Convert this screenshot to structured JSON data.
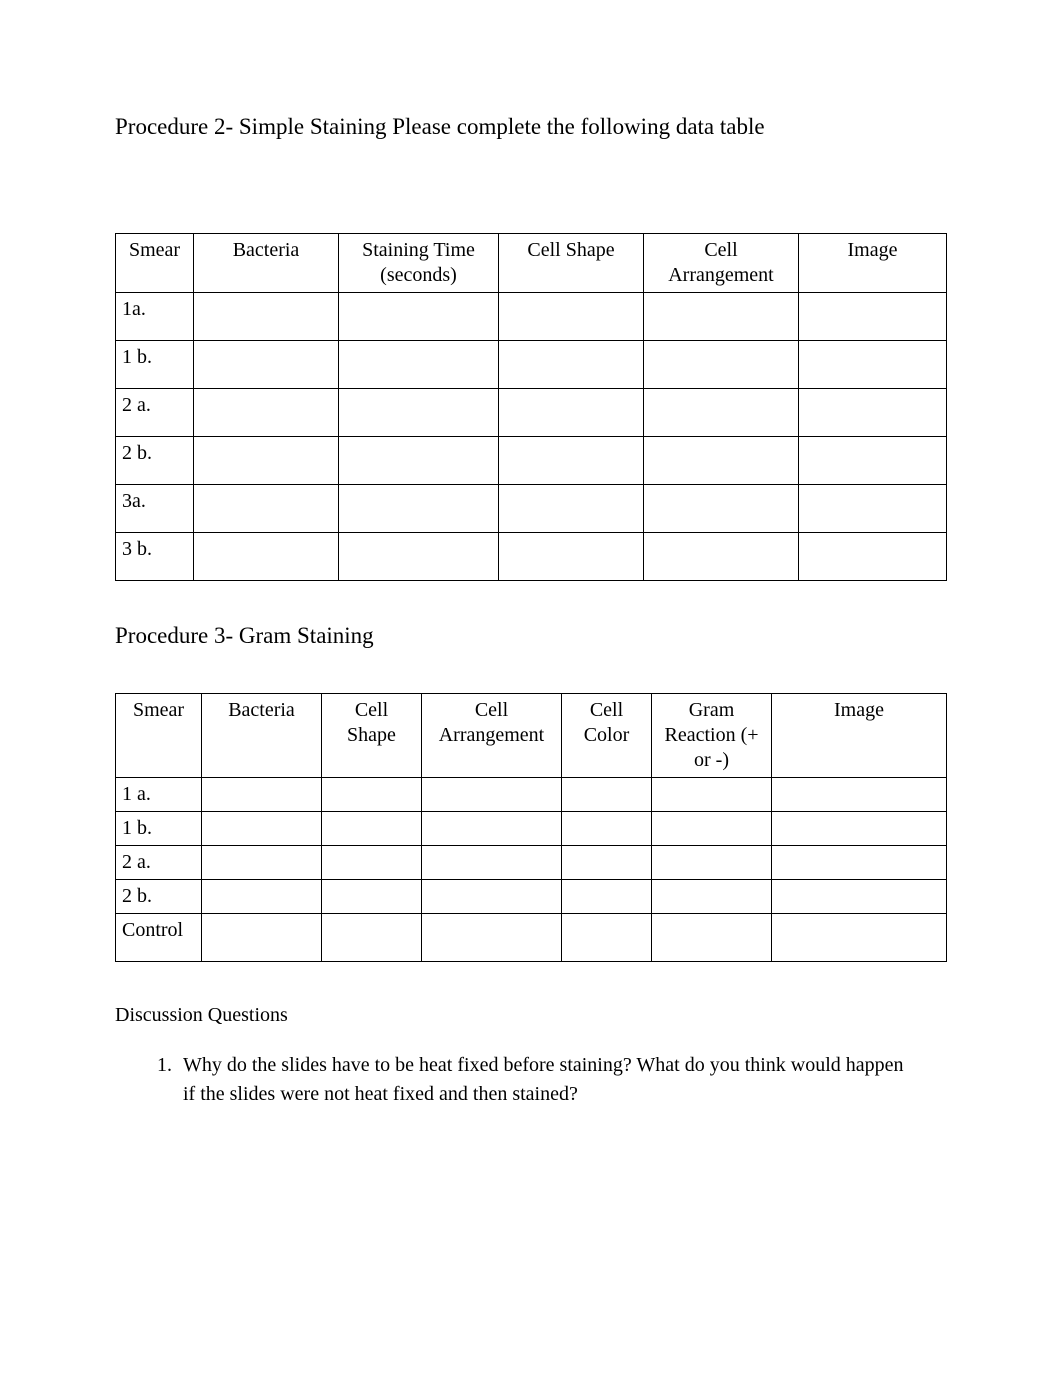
{
  "colors": {
    "page_bg": "#ffffff",
    "text": "#000000",
    "border": "#000000"
  },
  "typography": {
    "body_family": "Times New Roman",
    "heading_fontsize_pt": 17,
    "table_fontsize_pt": 15,
    "discussion_fontsize_pt": 15
  },
  "procedure2": {
    "heading": "Procedure 2- Simple Staining Please complete the following data table",
    "columns": [
      "Smear",
      "Bacteria",
      "Staining Time (seconds)",
      "Cell Shape",
      "Cell Arrangement",
      "Image"
    ],
    "rows": [
      {
        "smear": "1a.",
        "bacteria": "",
        "staining_time": "",
        "cell_shape": "",
        "cell_arrangement": "",
        "image": ""
      },
      {
        "smear": "1 b.",
        "bacteria": "",
        "staining_time": "",
        "cell_shape": "",
        "cell_arrangement": "",
        "image": ""
      },
      {
        "smear": "2 a.",
        "bacteria": "",
        "staining_time": "",
        "cell_shape": "",
        "cell_arrangement": "",
        "image": ""
      },
      {
        "smear": "2 b.",
        "bacteria": "",
        "staining_time": "",
        "cell_shape": "",
        "cell_arrangement": "",
        "image": ""
      },
      {
        "smear": "3a.",
        "bacteria": "",
        "staining_time": "",
        "cell_shape": "",
        "cell_arrangement": "",
        "image": ""
      },
      {
        "smear": "3 b.",
        "bacteria": "",
        "staining_time": "",
        "cell_shape": "",
        "cell_arrangement": "",
        "image": ""
      }
    ]
  },
  "procedure3": {
    "heading": "Procedure 3- Gram Staining",
    "columns": [
      "Smear",
      "Bacteria",
      "Cell Shape",
      "Cell Arrangement",
      "Cell Color",
      "Gram Reaction (+ or -)",
      "Image"
    ],
    "rows": [
      {
        "smear": "1 a.",
        "bacteria": "",
        "cell_shape": "",
        "cell_arrangement": "",
        "cell_color": "",
        "gram_reaction": "",
        "image": ""
      },
      {
        "smear": "1 b.",
        "bacteria": "",
        "cell_shape": "",
        "cell_arrangement": "",
        "cell_color": "",
        "gram_reaction": "",
        "image": ""
      },
      {
        "smear": "2 a.",
        "bacteria": "",
        "cell_shape": "",
        "cell_arrangement": "",
        "cell_color": "",
        "gram_reaction": "",
        "image": ""
      },
      {
        "smear": "2 b.",
        "bacteria": "",
        "cell_shape": "",
        "cell_arrangement": "",
        "cell_color": "",
        "gram_reaction": "",
        "image": ""
      },
      {
        "smear": "Control",
        "bacteria": "",
        "cell_shape": "",
        "cell_arrangement": "",
        "cell_color": "",
        "gram_reaction": "",
        "image": ""
      }
    ]
  },
  "discussion": {
    "label": "Discussion Questions",
    "questions": [
      "Why do the slides have to be heat fixed before staining? What do you think would happen if the slides were not heat fixed and then stained?"
    ]
  }
}
